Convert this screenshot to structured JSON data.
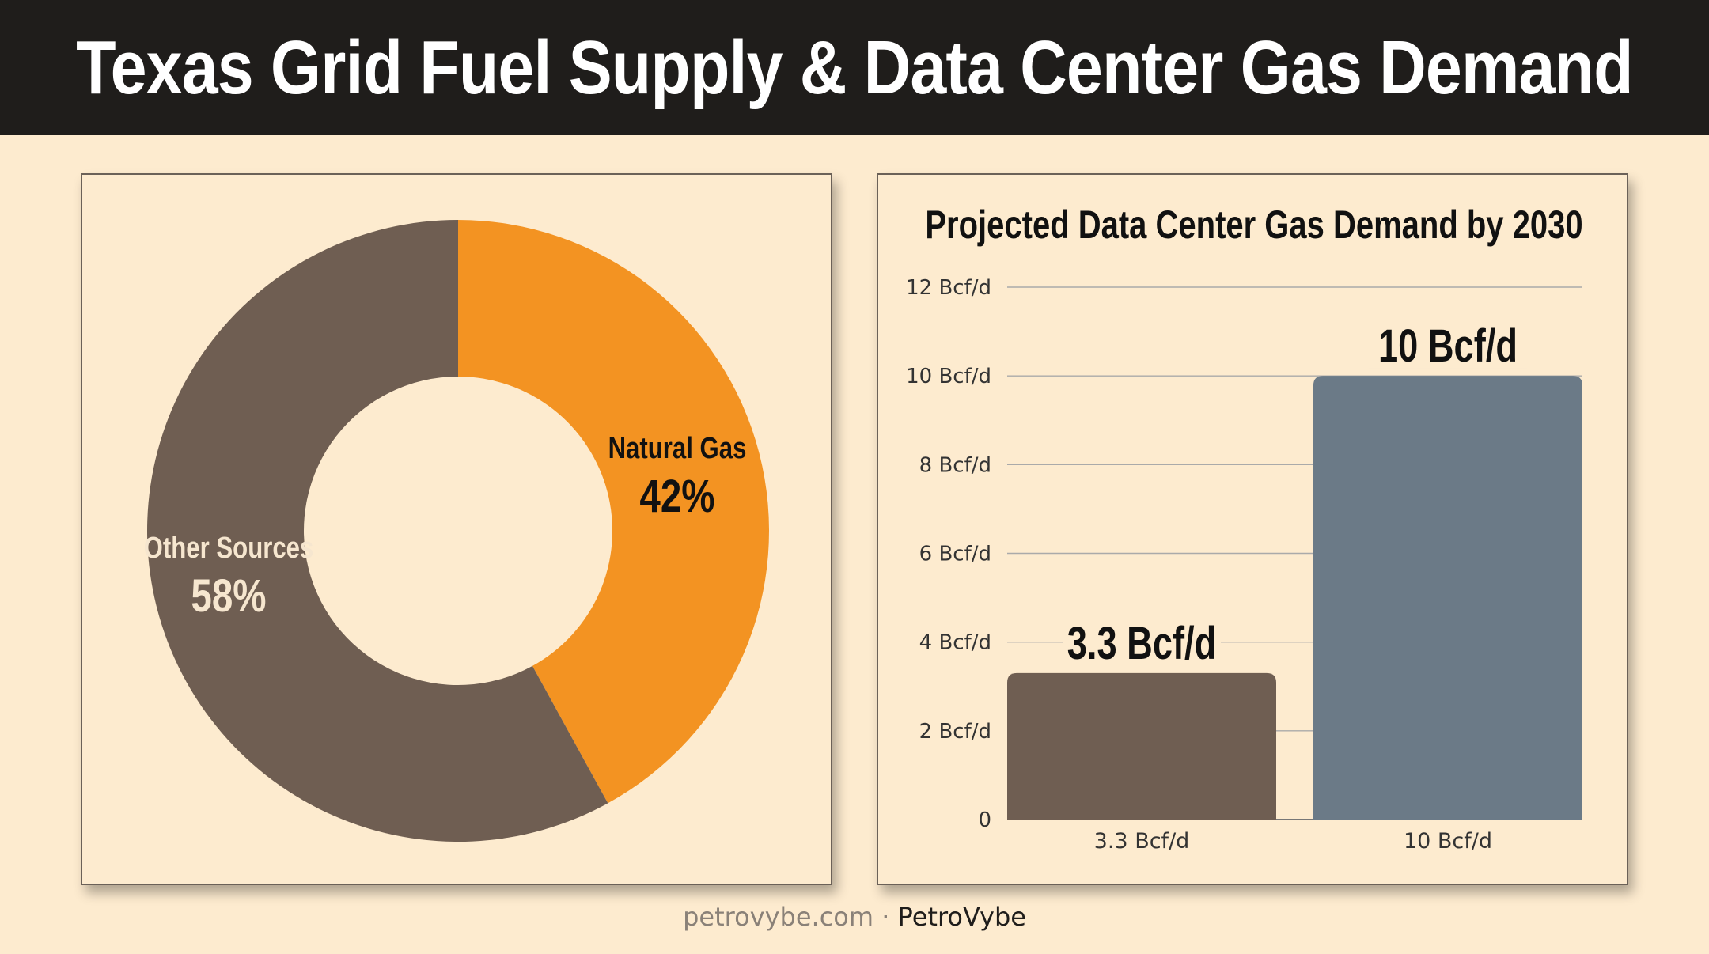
{
  "header": {
    "title": "Texas Grid Fuel Supply & Data Center Gas Demand"
  },
  "footer": {
    "site": "petrovybe.com",
    "separator": "·",
    "brand": "PetroVybe"
  },
  "colors": {
    "header_bg": "#1f1d1b",
    "background": "#fdebcf",
    "natural_gas": "#f39322",
    "other_sources": "#6f5e52",
    "bar_2030": "#6b7a87",
    "bar_current": "#6f5e52"
  },
  "chart_data": [
    {
      "type": "pie",
      "title": "",
      "slices": [
        {
          "label": "Natural Gas",
          "value": 42,
          "display": "42%",
          "color": "#f39322",
          "label_color": "#111111"
        },
        {
          "label": "Other Sources",
          "value": 58,
          "display": "58%",
          "color": "#6f5e52",
          "label_color": "#f6e6cf"
        }
      ],
      "donut": true
    },
    {
      "type": "bar",
      "title": "Projected Data Center Gas Demand by 2030",
      "categories": [
        "3.3 Bcf/d",
        "10 Bcf/d"
      ],
      "values": [
        3.3,
        10
      ],
      "data_labels": [
        "3.3 Bcf/d",
        "10 Bcf/d"
      ],
      "colors": [
        "#6f5e52",
        "#6b7a87"
      ],
      "ylim": [
        0,
        12
      ],
      "yticks": [
        {
          "value": 0,
          "label": "0"
        },
        {
          "value": 2,
          "label": "2 Bcf/d"
        },
        {
          "value": 4,
          "label": "4 Bcf/d"
        },
        {
          "value": 6,
          "label": "6 Bcf/d"
        },
        {
          "value": 8,
          "label": "8 Bcf/d"
        },
        {
          "value": 10,
          "label": "10 Bcf/d"
        },
        {
          "value": 12,
          "label": "12 Bcf/d"
        }
      ],
      "grid": true
    }
  ]
}
